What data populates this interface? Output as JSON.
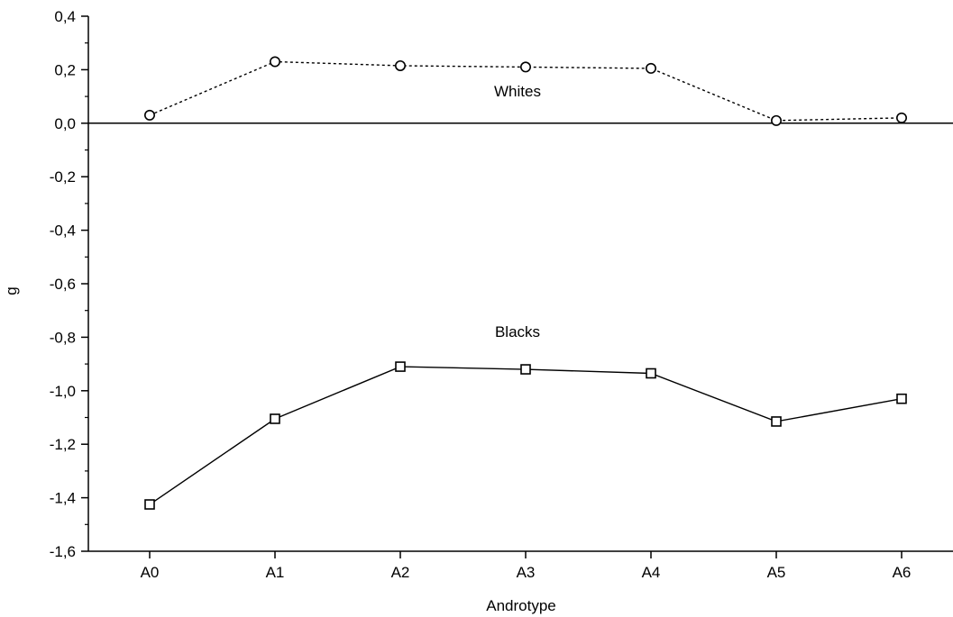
{
  "chart_data": {
    "type": "line",
    "title": "",
    "xlabel": "Androtype",
    "ylabel": "g",
    "categories": [
      "A0",
      "A1",
      "A2",
      "A3",
      "A4",
      "A5",
      "A6"
    ],
    "ylim": [
      -1.6,
      0.4
    ],
    "yticks": [
      0.4,
      0.2,
      0.0,
      -0.2,
      -0.4,
      -0.6,
      -0.8,
      -1.0,
      -1.2,
      -1.4,
      -1.6
    ],
    "ytick_labels": [
      "0,4",
      "0,2",
      "0,0",
      "-0,2",
      "-0,4",
      "-0,6",
      "-0,8",
      "-1,0",
      "-1,2",
      "-1,4",
      "-1,6"
    ],
    "reference_line": 0.0,
    "grid": false,
    "series": [
      {
        "name": "Whites",
        "marker": "circle",
        "line_style": "dotted",
        "values": [
          0.03,
          0.23,
          0.215,
          0.21,
          0.205,
          0.01,
          0.02
        ]
      },
      {
        "name": "Blacks",
        "marker": "square",
        "line_style": "solid",
        "values": [
          -1.425,
          -1.105,
          -0.91,
          -0.92,
          -0.935,
          -1.115,
          -1.03
        ]
      }
    ]
  }
}
